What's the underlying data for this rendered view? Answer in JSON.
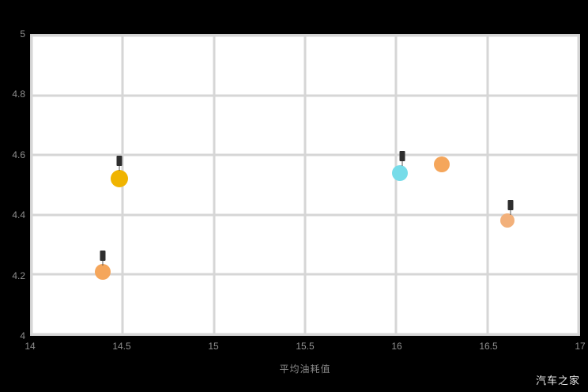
{
  "watermark": "汽车之家",
  "chart_data": {
    "type": "scatter",
    "title": "",
    "xlabel": "平均油耗值",
    "ylabel": "",
    "xlim": [
      14,
      17
    ],
    "ylim": [
      4,
      5
    ],
    "grid": true,
    "x_ticks": [
      {
        "value": 14,
        "label": "14"
      },
      {
        "value": 14.5,
        "label": "14.5"
      },
      {
        "value": 15,
        "label": "15"
      },
      {
        "value": 15.5,
        "label": "15.5"
      },
      {
        "value": 16,
        "label": "16"
      },
      {
        "value": 16.5,
        "label": "16.5"
      },
      {
        "value": 17,
        "label": "17"
      }
    ],
    "y_ticks": [
      {
        "value": 5,
        "label": "5"
      },
      {
        "value": 4.8,
        "label": "4.8"
      },
      {
        "value": 4.6,
        "label": "4.6"
      },
      {
        "value": 4.4,
        "label": "4.4"
      },
      {
        "value": 4.2,
        "label": "4.2"
      },
      {
        "value": 4,
        "label": "4"
      }
    ],
    "points": [
      {
        "x": 14.48,
        "y": 4.52,
        "r": 11,
        "color": "#F0B400",
        "label_mark": true
      },
      {
        "x": 14.39,
        "y": 4.21,
        "r": 10,
        "color": "#F5A65B",
        "label_mark": true
      },
      {
        "x": 16.02,
        "y": 4.54,
        "r": 10,
        "color": "#76DCE9",
        "label_mark": true
      },
      {
        "x": 16.25,
        "y": 4.57,
        "r": 10,
        "color": "#F5A65B",
        "label_mark": false
      },
      {
        "x": 16.61,
        "y": 4.38,
        "r": 9,
        "color": "#F2B07A",
        "label_mark": true
      }
    ],
    "colors": {
      "plot_background": "#ffffff",
      "page_background": "#000000",
      "gridline": "#d6d6d6",
      "tick_text": "#8f8f8f"
    }
  }
}
